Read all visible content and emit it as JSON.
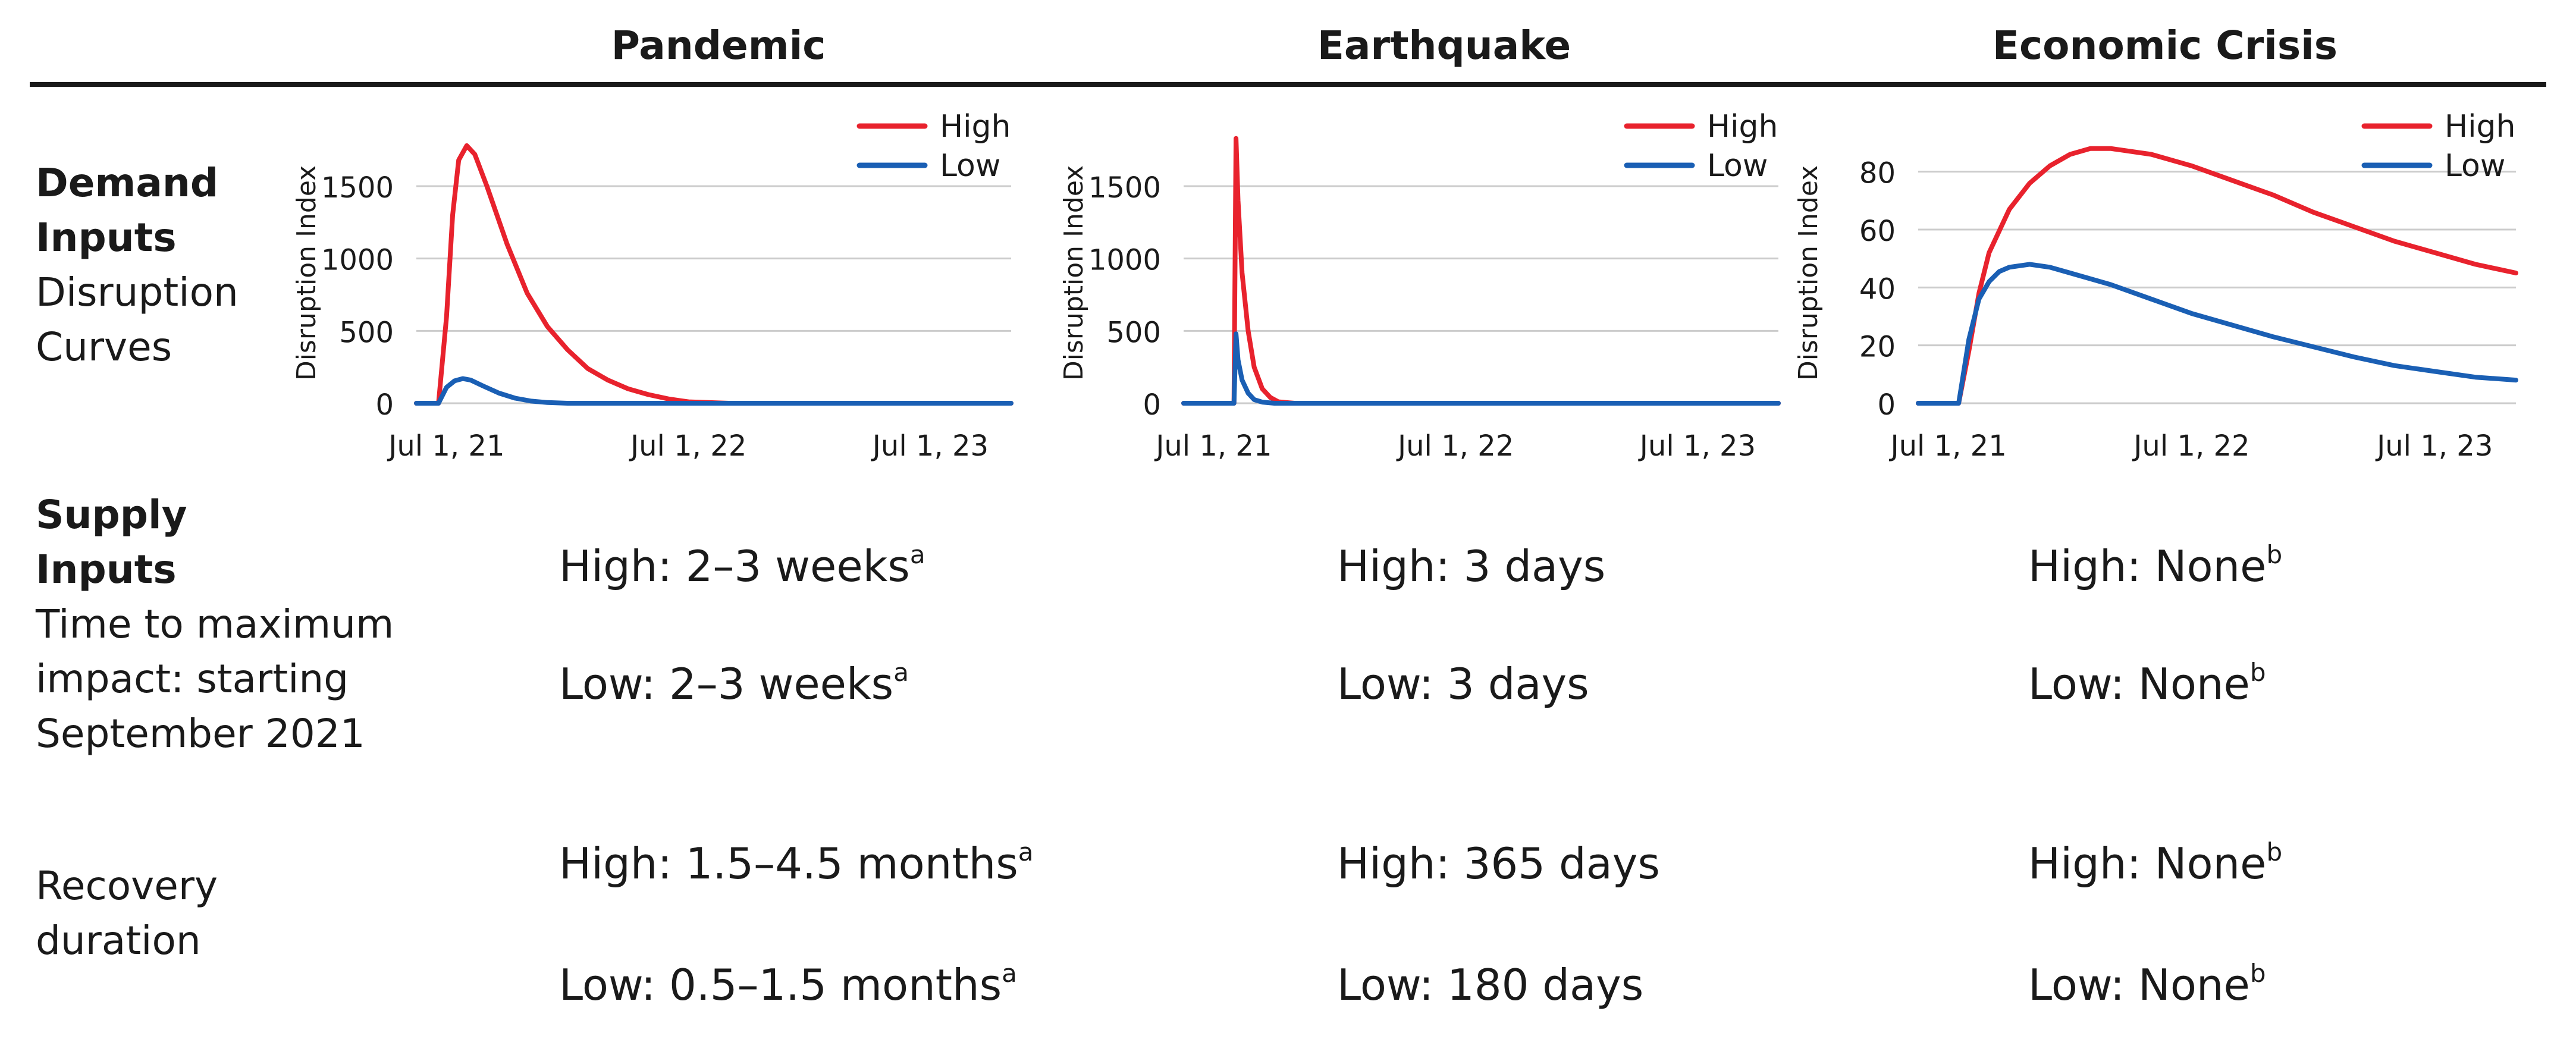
{
  "headers": [
    "Pandemic",
    "Earthquake",
    "Economic Crisis"
  ],
  "row_labels": {
    "demand_title": "Demand",
    "demand_title2": "Inputs",
    "demand_sub1": "Disruption",
    "demand_sub2": "Curves",
    "supply_title": "Supply",
    "supply_title2": "Inputs",
    "supply_sub1": "Time to maximum",
    "supply_sub2": "impact: starting",
    "supply_sub3": "September 2021",
    "recovery1": "Recovery",
    "recovery2": "duration"
  },
  "time_to_max": [
    {
      "high_text": "High: 2–3 weeks",
      "high_sup": "a",
      "low_text": "Low: 2–3 weeks",
      "low_sup": "a"
    },
    {
      "high_text": "High: 3 days",
      "high_sup": "",
      "low_text": "Low: 3 days",
      "low_sup": ""
    },
    {
      "high_text": "High: None",
      "high_sup": "b",
      "low_text": "Low: None",
      "low_sup": "b"
    }
  ],
  "recovery": [
    {
      "high_text": "High: 1.5–4.5 months",
      "high_sup": "a",
      "low_text": "Low: 0.5–1.5 months",
      "low_sup": "a"
    },
    {
      "high_text": "High: 365 days",
      "high_sup": "",
      "low_text": "Low: 180 days",
      "low_sup": ""
    },
    {
      "high_text": "High: None",
      "high_sup": "b",
      "low_text": "Low: None",
      "low_sup": "b"
    }
  ],
  "colors": {
    "high": "#e8222d",
    "low": "#1a5fb4",
    "grid": "#cccccc"
  },
  "chart_data": [
    {
      "type": "line",
      "title": "Pandemic",
      "ylabel": "Disruption Index",
      "x_unit": "months since Jul 1, 2021",
      "xlim": [
        -1.5,
        28
      ],
      "ylim": [
        0,
        1800
      ],
      "yticks": [
        0,
        500,
        1000,
        1500
      ],
      "xticks": [
        {
          "value": 0,
          "label": "Jul 1, 21"
        },
        {
          "value": 12,
          "label": "Jul 1, 22"
        },
        {
          "value": 24,
          "label": "Jul 1, 23"
        }
      ],
      "legend": [
        "High",
        "Low"
      ],
      "series": [
        {
          "name": "High",
          "x": [
            -1.5,
            -0.4,
            0,
            0.3,
            0.6,
            1.0,
            1.4,
            2.0,
            3.0,
            4.0,
            5.0,
            6.0,
            7.0,
            8.0,
            9.0,
            10.0,
            11.0,
            12.0,
            14.0,
            20.0,
            28.0
          ],
          "y": [
            0,
            0,
            600,
            1300,
            1680,
            1780,
            1720,
            1500,
            1100,
            760,
            530,
            370,
            240,
            160,
            100,
            60,
            30,
            10,
            0,
            0,
            0
          ]
        },
        {
          "name": "Low",
          "x": [
            -1.5,
            -0.4,
            0,
            0.4,
            0.8,
            1.2,
            1.8,
            2.6,
            3.4,
            4.2,
            5.0,
            6.0,
            10.0,
            28.0
          ],
          "y": [
            0,
            0,
            110,
            155,
            170,
            160,
            120,
            70,
            35,
            15,
            5,
            0,
            0,
            0
          ]
        }
      ]
    },
    {
      "type": "line",
      "title": "Earthquake",
      "ylabel": "Disruption Index",
      "x_unit": "months since Jul 1, 2021",
      "xlim": [
        -1.5,
        28
      ],
      "ylim": [
        0,
        1800
      ],
      "yticks": [
        0,
        500,
        1000,
        1500
      ],
      "xticks": [
        {
          "value": 0,
          "label": "Jul 1, 21"
        },
        {
          "value": 12,
          "label": "Jul 1, 22"
        },
        {
          "value": 24,
          "label": "Jul 1, 23"
        }
      ],
      "legend": [
        "High",
        "Low"
      ],
      "series": [
        {
          "name": "High",
          "x": [
            -1.5,
            1.0,
            1.1,
            1.2,
            1.4,
            1.7,
            2.0,
            2.4,
            2.8,
            3.2,
            4.0,
            28.0
          ],
          "y": [
            0,
            0,
            1830,
            1400,
            900,
            500,
            250,
            100,
            40,
            10,
            0,
            0
          ]
        },
        {
          "name": "Low",
          "x": [
            -1.5,
            1.0,
            1.1,
            1.2,
            1.4,
            1.7,
            2.0,
            2.4,
            3.0,
            28.0
          ],
          "y": [
            0,
            0,
            480,
            300,
            160,
            70,
            25,
            8,
            0,
            0
          ]
        }
      ]
    },
    {
      "type": "line",
      "title": "Economic Crisis",
      "ylabel": "Disruption Index",
      "x_unit": "months since Jul 1, 2021",
      "xlim": [
        -1.5,
        28
      ],
      "ylim": [
        0,
        90
      ],
      "yticks": [
        0,
        20,
        40,
        60,
        80
      ],
      "xticks": [
        {
          "value": 0,
          "label": "Jul 1, 21"
        },
        {
          "value": 12,
          "label": "Jul 1, 22"
        },
        {
          "value": 24,
          "label": "Jul 1, 23"
        }
      ],
      "legend": [
        "High",
        "Low"
      ],
      "series": [
        {
          "name": "High",
          "x": [
            -1.5,
            0.5,
            1.0,
            1.5,
            2.0,
            3.0,
            4.0,
            5.0,
            6.0,
            7.0,
            8.0,
            10.0,
            12.0,
            14.0,
            16.0,
            18.0,
            20.0,
            22.0,
            24.0,
            26.0,
            28.0
          ],
          "y": [
            0,
            0,
            18,
            38,
            52,
            67,
            76,
            82,
            86,
            88,
            88,
            86,
            82,
            77,
            72,
            66,
            61,
            56,
            52,
            48,
            45
          ]
        },
        {
          "name": "Low",
          "x": [
            -1.5,
            0.5,
            1.0,
            1.5,
            2.0,
            2.5,
            3.0,
            4.0,
            5.0,
            6.0,
            8.0,
            10.0,
            12.0,
            14.0,
            16.0,
            18.0,
            20.0,
            22.0,
            24.0,
            26.0,
            28.0
          ],
          "y": [
            0,
            0,
            22,
            36,
            42,
            45.5,
            47,
            48,
            47,
            45,
            41,
            36,
            31,
            27,
            23,
            19.5,
            16,
            13,
            11,
            9,
            8
          ]
        }
      ]
    }
  ]
}
